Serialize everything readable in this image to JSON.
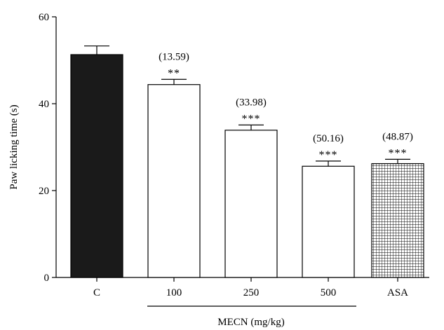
{
  "chart_data": {
    "type": "bar",
    "ylabel": "Paw licking time (s)",
    "ylim": [
      0,
      60
    ],
    "yticks": [
      0,
      20,
      40,
      60
    ],
    "categories": [
      "C",
      "100",
      "250",
      "500",
      "ASA"
    ],
    "values": [
      51.3,
      44.4,
      33.9,
      25.6,
      26.2
    ],
    "errors": [
      2.0,
      1.2,
      1.2,
      1.2,
      1.0
    ],
    "significance": [
      "",
      "**",
      "***",
      "***",
      "***"
    ],
    "inhibition_labels": [
      "",
      "(13.59)",
      "(33.98)",
      "(50.16)",
      "(48.87)"
    ],
    "fills": [
      "solid-black",
      "white",
      "white",
      "white",
      "grid-pattern"
    ],
    "group_label": "MECN (mg/kg)",
    "group_categories": [
      "100",
      "250",
      "500"
    ]
  }
}
